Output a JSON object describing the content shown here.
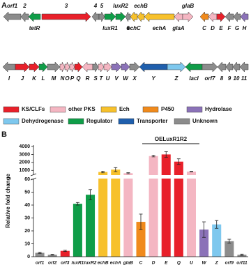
{
  "panels": {
    "a": "A",
    "b": "B"
  },
  "gene_map": {
    "rows": [
      [
        {
          "label": "orf1",
          "color": "#8c8c8c",
          "dir": "left",
          "label_side": "top"
        },
        {
          "label": "2",
          "color": "#8c8c8c",
          "dir": "left",
          "label_side": "top"
        },
        {
          "label": "tetR",
          "color": "#0f9d48",
          "dir": "left",
          "label_side": "bottom"
        },
        {
          "label": "3",
          "color": "#e8202a",
          "dir": "right",
          "label_side": "top"
        },
        {
          "label": "4",
          "color": "#8c8c8c",
          "dir": "left",
          "label_side": "top"
        },
        {
          "label": "5",
          "color": "#8c8c8c",
          "dir": "right",
          "label_side": "top"
        },
        {
          "label": "luxR1",
          "color": "#0f9d48",
          "dir": "right",
          "label_side": "bottom"
        },
        {
          "label": "luxR2",
          "color": "#0f9d48",
          "dir": "right",
          "label_side": "top"
        },
        {
          "label": "6",
          "color": "#8c8c8c",
          "dir": "left",
          "label_side": "bottom"
        },
        {
          "label": "echC",
          "color": "#f7c12c",
          "dir": "left",
          "label_side": "bottom"
        },
        {
          "label": "echB",
          "color": "#f7c12c",
          "dir": "left",
          "label_side": "top"
        },
        {
          "label": "echA",
          "color": "#f7c12c",
          "dir": "left",
          "label_side": "bottom"
        },
        {
          "label": "glaA",
          "color": "#f4b6c2",
          "dir": "left",
          "label_side": "bottom"
        },
        {
          "label": "glaB",
          "color": "#f4b6c2",
          "dir": "right",
          "label_side": "top"
        },
        {
          "label": "C",
          "color": "#f08a1c",
          "dir": "left",
          "label_side": "bottom"
        },
        {
          "label": "D",
          "color": "#f4b6c2",
          "dir": "left",
          "label_side": "bottom"
        },
        {
          "label": "E",
          "color": "#e8202a",
          "dir": "right",
          "label_side": "bottom"
        },
        {
          "label": "F",
          "color": "#8c8c8c",
          "dir": "left",
          "label_side": "bottom"
        },
        {
          "label": "G",
          "color": "#8c8c8c",
          "dir": "left",
          "label_side": "bottom"
        },
        {
          "label": "H",
          "color": "#8b72b8",
          "dir": "left",
          "label_side": "bottom"
        }
      ],
      [
        {
          "label": "I",
          "color": "#8c8c8c",
          "dir": "left",
          "label_side": "bottom"
        },
        {
          "label": "J",
          "color": "#e8202a",
          "dir": "right",
          "label_side": "bottom"
        },
        {
          "label": "K",
          "color": "#e8202a",
          "dir": "right",
          "label_side": "bottom"
        },
        {
          "label": "L",
          "color": "#0f9d48",
          "dir": "right",
          "label_side": "bottom"
        },
        {
          "label": "M",
          "color": "#8c8c8c",
          "dir": "right",
          "label_side": "bottom"
        },
        {
          "label": "N",
          "color": "#f4b6c2",
          "dir": "right",
          "label_side": "bottom"
        },
        {
          "label": "O",
          "color": "#f4b6c2",
          "dir": "right",
          "label_side": "bottom"
        },
        {
          "label": "P",
          "color": "#f4b6c2",
          "dir": "right",
          "label_side": "bottom"
        },
        {
          "label": "Q",
          "color": "#e8202a",
          "dir": "right",
          "label_side": "bottom"
        },
        {
          "label": "R",
          "color": "#f4b6c2",
          "dir": "left",
          "label_side": "bottom"
        },
        {
          "label": "S",
          "color": "#8c8c8c",
          "dir": "right",
          "label_side": "bottom"
        },
        {
          "label": "T",
          "color": "#f4b6c2",
          "dir": "right",
          "label_side": "bottom"
        },
        {
          "label": "U",
          "color": "#f4b6c2",
          "dir": "right",
          "label_side": "bottom"
        },
        {
          "label": "V",
          "color": "#8b72b8",
          "dir": "right",
          "label_side": "bottom"
        },
        {
          "label": "W",
          "color": "#8b72b8",
          "dir": "right",
          "label_side": "bottom"
        },
        {
          "label": "X",
          "color": "#8c8c8c",
          "dir": "right",
          "label_side": "bottom"
        },
        {
          "label": "Y",
          "color": "#1f5fad",
          "dir": "left",
          "label_side": "bottom"
        },
        {
          "label": "Z",
          "color": "#7ec8ee",
          "dir": "right",
          "label_side": "bottom"
        },
        {
          "label": "lacI",
          "color": "#0f9d48",
          "dir": "left",
          "label_side": "bottom"
        },
        {
          "label": "orf7",
          "color": "#8c8c8c",
          "dir": "right",
          "label_side": "bottom"
        },
        {
          "label": "8",
          "color": "#8c8c8c",
          "dir": "left",
          "label_side": "bottom"
        },
        {
          "label": "9",
          "color": "#8c8c8c",
          "dir": "left",
          "label_side": "bottom"
        },
        {
          "label": "10",
          "color": "#8c8c8c",
          "dir": "left",
          "label_side": "bottom"
        },
        {
          "label": "11",
          "color": "#8c8c8c",
          "dir": "left",
          "label_side": "bottom"
        }
      ]
    ]
  },
  "legend": [
    {
      "label": "KS/CLFs",
      "color": "#e8202a"
    },
    {
      "label": "other PKS",
      "color": "#f4b6c2"
    },
    {
      "label": "Ech",
      "color": "#f7c12c"
    },
    {
      "label": "P450",
      "color": "#f08a1c"
    },
    {
      "label": "Hydrolase",
      "color": "#8b72b8"
    },
    {
      "label": "Dehydrogenase",
      "color": "#7ec8ee"
    },
    {
      "label": "Regulator",
      "color": "#0f9d48"
    },
    {
      "label": "Transporter",
      "color": "#1f5fad"
    },
    {
      "label": "Unknown",
      "color": "#8c8c8c"
    }
  ],
  "chart_data": {
    "type": "bar",
    "title": "OELuxR1R2",
    "y_label": "Relative fold change",
    "categories": [
      "orf1",
      "orf2",
      "orf3",
      "luxR1",
      "luxR2",
      "echB",
      "echA",
      "glaB",
      "C",
      "D",
      "E",
      "Q",
      "U",
      "W",
      "Z",
      "orf9",
      "orf11"
    ],
    "values": [
      3,
      1.5,
      4.5,
      41,
      48,
      800,
      1100,
      650,
      27,
      2800,
      3000,
      2100,
      850,
      21,
      25,
      12,
      1.5
    ],
    "errors": [
      0.5,
      0.3,
      0.5,
      1,
      4,
      100,
      250,
      60,
      6,
      100,
      350,
      350,
      30,
      6,
      3,
      1.5,
      0.5
    ],
    "colors": [
      "#8c8c8c",
      "#8c8c8c",
      "#e8202a",
      "#0f9d48",
      "#0f9d48",
      "#f7c12c",
      "#f7c12c",
      "#f4b6c2",
      "#f08a1c",
      "#f4b6c2",
      "#e8202a",
      "#e8202a",
      "#f4b6c2",
      "#8b72b8",
      "#7ec8ee",
      "#8c8c8c",
      "#8c8c8c"
    ],
    "ylim": [
      0,
      4000
    ],
    "ybreak": [
      60,
      500
    ],
    "yticks": [
      0,
      10,
      20,
      30,
      40,
      50,
      60,
      1000,
      2000,
      3000,
      4000
    ]
  }
}
